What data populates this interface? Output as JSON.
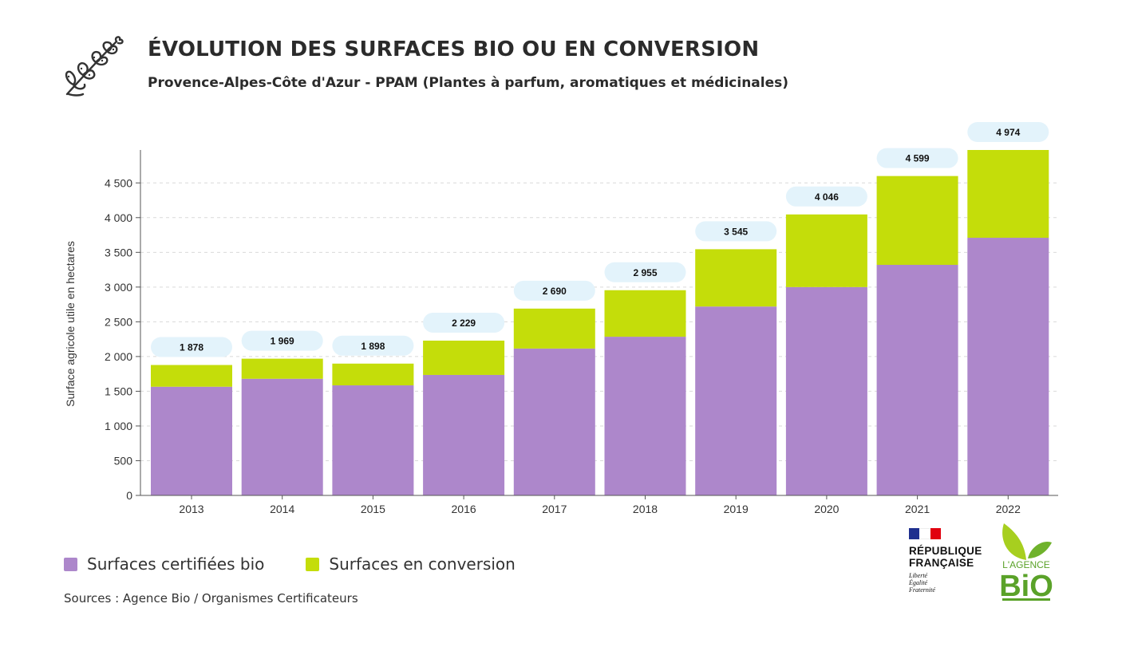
{
  "header": {
    "title": "ÉVOLUTION DES SURFACES BIO OU EN CONVERSION",
    "subtitle": "Provence-Alpes-Côte d'Azur - PPAM (Plantes à parfum, aromatiques et médicinales)"
  },
  "chart_data": {
    "type": "bar",
    "stacked": true,
    "title": "ÉVOLUTION DES SURFACES BIO OU EN CONVERSION",
    "subtitle": "Provence-Alpes-Côte d'Azur - PPAM (Plantes à parfum, aromatiques et médicinales)",
    "xlabel": "",
    "ylabel": "Surface agricole utile en hectares",
    "ylim": [
      0,
      4974
    ],
    "yticks": [
      0,
      500,
      1000,
      1500,
      2000,
      2500,
      3000,
      3500,
      4000,
      4500
    ],
    "ytick_labels": [
      "0",
      "500",
      "1 000",
      "1 500",
      "2 000",
      "2 500",
      "3 000",
      "3 500",
      "4 000",
      "4 500"
    ],
    "grid": "horizontal dashed",
    "legend_position": "bottom-left",
    "categories": [
      "2013",
      "2014",
      "2015",
      "2016",
      "2017",
      "2018",
      "2019",
      "2020",
      "2021",
      "2022"
    ],
    "series": [
      {
        "name": "Surfaces certifiées bio",
        "color": "#ad87cb",
        "values": [
          1565,
          1680,
          1585,
          1735,
          2115,
          2285,
          2720,
          3000,
          3320,
          3710
        ]
      },
      {
        "name": "Surfaces en conversion",
        "color": "#c4dd0a",
        "values": [
          313,
          289,
          313,
          494,
          575,
          670,
          825,
          1046,
          1279,
          1264
        ]
      }
    ],
    "totals": [
      1878,
      1969,
      1898,
      2229,
      2690,
      2955,
      3545,
      4046,
      4599,
      4974
    ],
    "total_labels": [
      "1 878",
      "1 969",
      "1 898",
      "2 229",
      "2 690",
      "2 955",
      "3 545",
      "4 046",
      "4 599",
      "4 974"
    ],
    "total_label_bg": "#e3f3fb"
  },
  "legend": [
    {
      "label": "Surfaces certifiées bio",
      "color": "#ad87cb"
    },
    {
      "label": "Surfaces en conversion",
      "color": "#c4dd0a"
    }
  ],
  "source": "Sources : Agence Bio / Organismes Certificateurs",
  "logos": {
    "republique": {
      "name_line1": "RÉPUBLIQUE",
      "name_line2": "FRANÇAISE",
      "motto": [
        "Liberté",
        "Égalité",
        "Fraternité"
      ]
    },
    "agence_bio": {
      "line1": "L'AGENCE",
      "line2": "BiO",
      "color": "#5aa229"
    }
  },
  "icons": {
    "header": "herb-sprig-icon"
  }
}
